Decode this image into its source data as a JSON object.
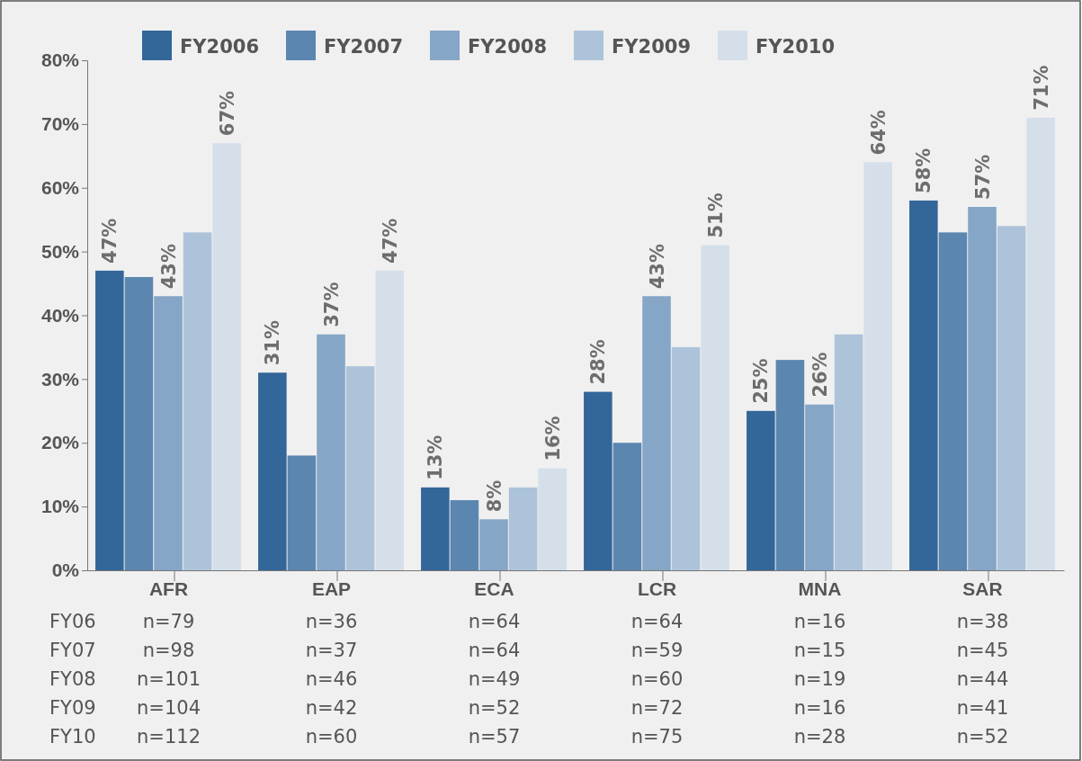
{
  "chart_data": {
    "type": "bar",
    "categories": [
      "AFR",
      "EAP",
      "ECA",
      "LCR",
      "MNA",
      "SAR"
    ],
    "series": [
      {
        "name": "FY2006",
        "color": "#336699",
        "values": [
          47,
          31,
          13,
          28,
          25,
          58
        ],
        "value_labels": [
          "47%",
          "31%",
          "13%",
          "28%",
          "25%",
          "58%"
        ]
      },
      {
        "name": "FY2007",
        "color": "#5b86b0",
        "values": [
          46,
          18,
          11,
          20,
          33,
          53
        ],
        "value_labels": [
          null,
          null,
          null,
          null,
          null,
          null
        ]
      },
      {
        "name": "FY2008",
        "color": "#86a6c7",
        "values": [
          43,
          37,
          8,
          43,
          26,
          57
        ],
        "value_labels": [
          "43%",
          "37%",
          "8%",
          "43%",
          "26%",
          "57%"
        ]
      },
      {
        "name": "FY2009",
        "color": "#adc3da",
        "values": [
          53,
          32,
          13,
          35,
          37,
          54
        ],
        "value_labels": [
          null,
          null,
          null,
          null,
          null,
          null
        ]
      },
      {
        "name": "FY2010",
        "color": "#d5dfea",
        "values": [
          67,
          47,
          16,
          51,
          64,
          71
        ],
        "value_labels": [
          "67%",
          "47%",
          "16%",
          "51%",
          "64%",
          "71%"
        ]
      }
    ],
    "ylim": [
      0,
      80
    ],
    "yticks": [
      {
        "value": 0,
        "label": "0%"
      },
      {
        "value": 10,
        "label": "10%"
      },
      {
        "value": 20,
        "label": "20%"
      },
      {
        "value": 30,
        "label": "30%"
      },
      {
        "value": 40,
        "label": "40%"
      },
      {
        "value": 50,
        "label": "50%"
      },
      {
        "value": 60,
        "label": "60%"
      },
      {
        "value": 70,
        "label": "70%"
      },
      {
        "value": 80,
        "label": "80%"
      }
    ],
    "legend": "top",
    "grid": false,
    "annotations": [
      "FY06",
      "n=79",
      "n=36",
      "n=64",
      "n=64",
      "n=16",
      "n=38",
      "FY07",
      "n=98",
      "n=37",
      "n=64",
      "n=59",
      "n=15",
      "n=45",
      "FY08",
      "n=101",
      "n=46",
      "n=49",
      "n=60",
      "n=19",
      "n=44",
      "FY09",
      "n=104",
      "n=42",
      "n=52",
      "n=72",
      "n=16",
      "n=41",
      "FY10",
      "n=112",
      "n=60",
      "n=57",
      "n=75",
      "n=28",
      "n=52"
    ]
  }
}
